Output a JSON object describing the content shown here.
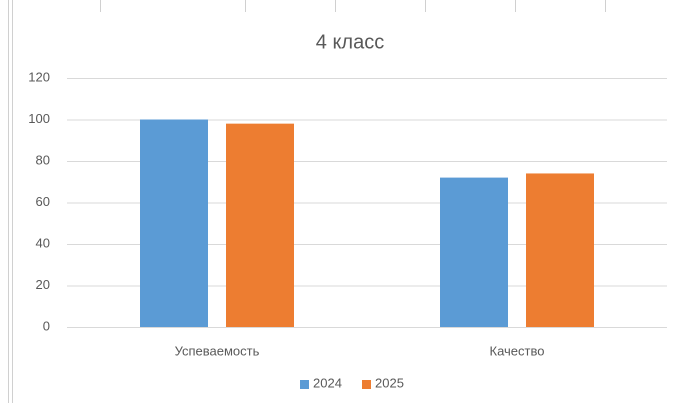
{
  "chart_data": {
    "type": "bar",
    "title": "4 класс",
    "categories": [
      "Успеваемость",
      "Качество"
    ],
    "series": [
      {
        "name": "2024",
        "color": "#5b9bd5",
        "values": [
          100,
          72
        ]
      },
      {
        "name": "2025",
        "color": "#ed7d31",
        "values": [
          98,
          74
        ]
      }
    ],
    "ylim": [
      0,
      120
    ],
    "yticks": [
      0,
      20,
      40,
      60,
      80,
      100,
      120
    ],
    "grid": true,
    "legend": "bottom"
  }
}
